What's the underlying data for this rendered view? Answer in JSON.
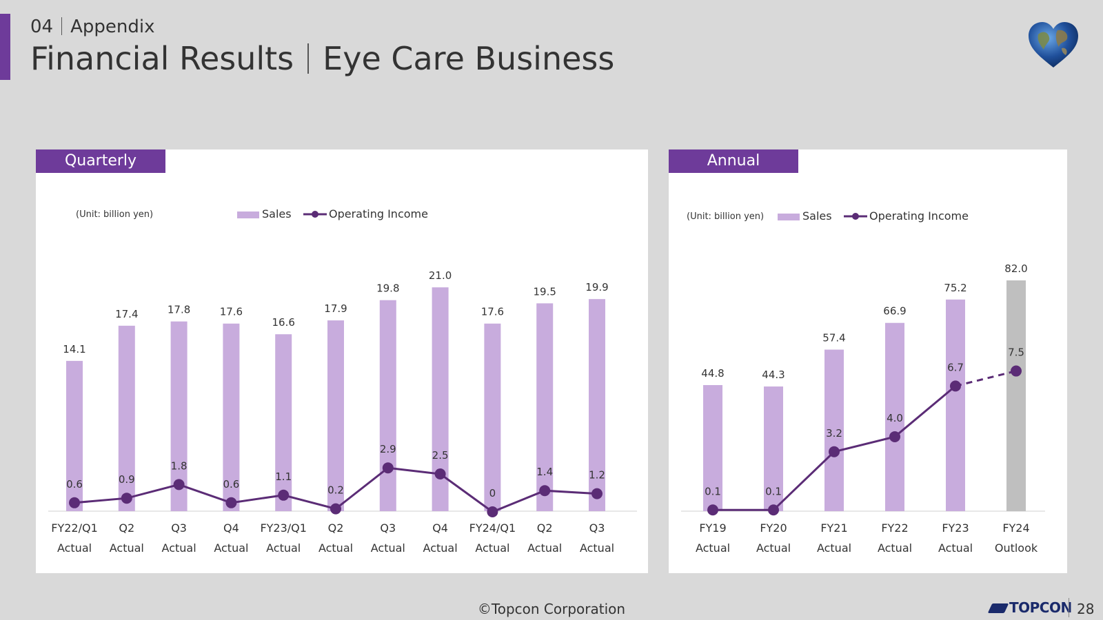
{
  "header": {
    "section_number": "04",
    "section_name": "Appendix",
    "title_left": "Financial Results",
    "title_right": "Eye Care Business"
  },
  "footer": {
    "copyright": "©Topcon Corporation",
    "logo_text": "TOPCON",
    "page_number": "28"
  },
  "colors": {
    "accent": "#6e3b9a",
    "sales_bar": "#c8acdd",
    "outlook_bar": "#bfbfbf",
    "line": "#5b2c76",
    "background": "#d9d9d9"
  },
  "icons": [
    "globe-heart-icon",
    "topcon-logo-icon"
  ],
  "chart_data": [
    {
      "id": "quarterly",
      "type": "bar",
      "title": "Quarterly",
      "unit_label": "(Unit: billion yen)",
      "legend": {
        "sales": "Sales",
        "operating_income": "Operating Income"
      },
      "categories": [
        [
          "FY22/Q1",
          "Actual"
        ],
        [
          "Q2",
          "Actual"
        ],
        [
          "Q3",
          "Actual"
        ],
        [
          "Q4",
          "Actual"
        ],
        [
          "FY23/Q1",
          "Actual"
        ],
        [
          "Q2",
          "Actual"
        ],
        [
          "Q3",
          "Actual"
        ],
        [
          "Q4",
          "Actual"
        ],
        [
          "FY24/Q1",
          "Actual"
        ],
        [
          "Q2",
          "Actual"
        ],
        [
          "Q3",
          "Actual"
        ]
      ],
      "series": [
        {
          "name": "Sales",
          "type": "bar",
          "values": [
            14.1,
            17.4,
            17.8,
            17.6,
            16.6,
            17.9,
            19.8,
            21.0,
            17.6,
            19.5,
            19.9
          ],
          "labels": [
            "14.1",
            "17.4",
            "17.8",
            "17.6",
            "16.6",
            "17.9",
            "19.8",
            "21.0",
            "17.6",
            "19.5",
            "19.9"
          ]
        },
        {
          "name": "Operating Income",
          "type": "line",
          "values": [
            0.6,
            0.9,
            1.8,
            0.6,
            1.1,
            0.2,
            2.9,
            2.5,
            0,
            1.4,
            1.2
          ],
          "labels": [
            "0.6",
            "0.9",
            "1.8",
            "0.6",
            "1.1",
            "0.2",
            "2.9",
            "2.5",
            "0",
            "1.4",
            "1.2"
          ]
        }
      ]
    },
    {
      "id": "annual",
      "type": "bar",
      "title": "Annual",
      "unit_label": "(Unit: billion yen)",
      "legend": {
        "sales": "Sales",
        "operating_income": "Operating Income"
      },
      "categories": [
        [
          "FY19",
          "Actual"
        ],
        [
          "FY20",
          "Actual"
        ],
        [
          "FY21",
          "Actual"
        ],
        [
          "FY22",
          "Actual"
        ],
        [
          "FY23",
          "Actual"
        ],
        [
          "FY24",
          "Outlook"
        ]
      ],
      "outlook_index": 5,
      "series": [
        {
          "name": "Sales",
          "type": "bar",
          "values": [
            44.8,
            44.3,
            57.4,
            66.9,
            75.2,
            82.0
          ],
          "labels": [
            "44.8",
            "44.3",
            "57.4",
            "66.9",
            "75.2",
            "82.0"
          ]
        },
        {
          "name": "Operating Income",
          "type": "line",
          "values": [
            0.1,
            0.1,
            3.2,
            4.0,
            6.7,
            7.5
          ],
          "labels": [
            "0.1",
            "0.1",
            "3.2",
            "4.0",
            "6.7",
            "7.5"
          ]
        }
      ]
    }
  ]
}
